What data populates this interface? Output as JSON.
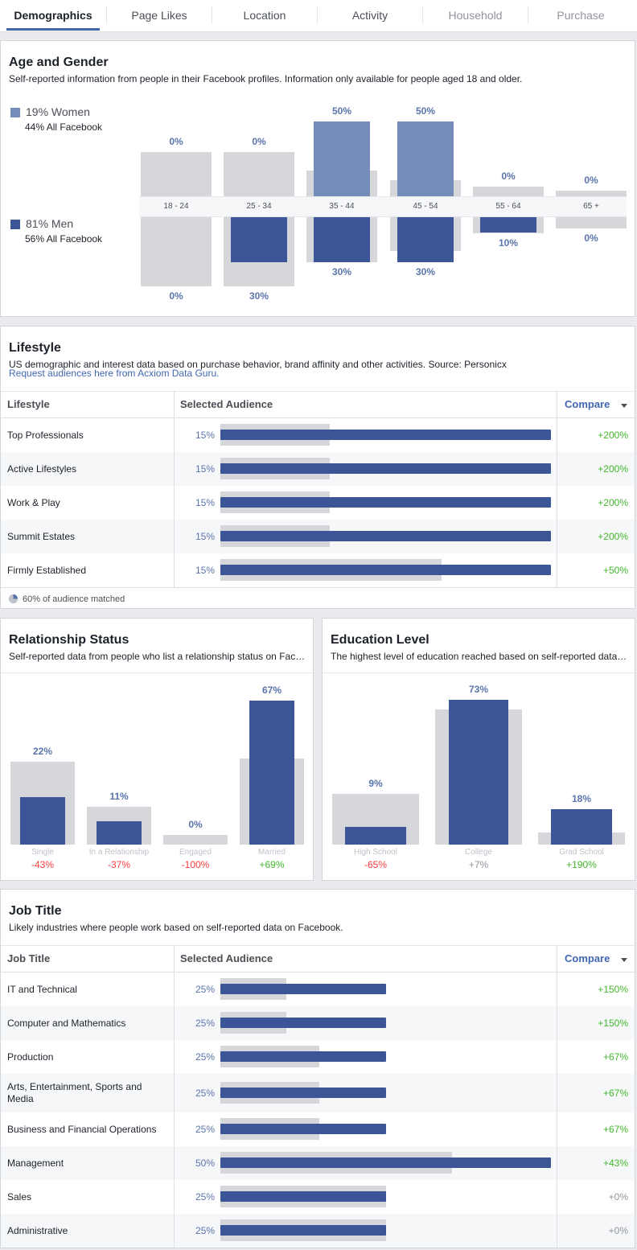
{
  "tabs": [
    "Demographics",
    "Page Likes",
    "Location",
    "Activity",
    "Household",
    "Purchase"
  ],
  "age_gender": {
    "title": "Age and Gender",
    "subtitle": "Self-reported information from people in their Facebook profiles. Information only available for people aged 18 and older.",
    "women_label": "19% Women",
    "women_sub": "44% All Facebook",
    "men_label": "81% Men",
    "men_sub": "56% All Facebook",
    "colors": {
      "women": "#768cb8",
      "men": "#3b5696",
      "baseline": "#d5d7db"
    },
    "chart_data": {
      "type": "bar",
      "categories": [
        "18 - 24",
        "25 - 34",
        "35 - 44",
        "45 - 54",
        "55 - 64",
        "65 +"
      ],
      "series": [
        {
          "name": "Women",
          "values": [
            0,
            0,
            50,
            50,
            0,
            0
          ],
          "labels": [
            "0%",
            "0%",
            "50%",
            "50%",
            "0%",
            "0%"
          ]
        },
        {
          "name": "Men",
          "values": [
            0,
            30,
            30,
            30,
            10,
            0
          ],
          "labels": [
            "0%",
            "30%",
            "30%",
            "30%",
            "10%",
            "0%"
          ]
        }
      ]
    }
  },
  "lifestyle": {
    "title": "Lifestyle",
    "subtitle": "US demographic and interest data based on purchase behavior, brand affinity and other activities. Source: Personicx",
    "link": "Request audiences here from Acxiom Data Guru.",
    "col_label": "Lifestyle",
    "col_selected": "Selected Audience",
    "col_compare": "Compare",
    "rows": [
      {
        "label": "Top Professionals",
        "pct": "15%",
        "compare": "+200%"
      },
      {
        "label": "Active Lifestyles",
        "pct": "15%",
        "compare": "+200%"
      },
      {
        "label": "Work & Play",
        "pct": "15%",
        "compare": "+200%"
      },
      {
        "label": "Summit Estates",
        "pct": "15%",
        "compare": "+200%"
      },
      {
        "label": "Firmly Established",
        "pct": "15%",
        "compare": "+50%"
      }
    ],
    "footer": "60% of audience matched"
  },
  "relationship": {
    "title": "Relationship Status",
    "subtitle": "Self-reported data from people who list a relationship status on Fac…",
    "chart_data": {
      "type": "bar",
      "categories": [
        "Single",
        "In a Relationship",
        "Engaged",
        "Married"
      ],
      "values": [
        22,
        11,
        0,
        67
      ],
      "labels": [
        "22%",
        "11%",
        "0%",
        "67%"
      ],
      "deltas": [
        "-43%",
        "-37%",
        "-100%",
        "+69%"
      ]
    }
  },
  "education": {
    "title": "Education Level",
    "subtitle": "The highest level of education reached based on self-reported data…",
    "chart_data": {
      "type": "bar",
      "categories": [
        "High School",
        "College",
        "Grad School"
      ],
      "values": [
        9,
        73,
        18
      ],
      "labels": [
        "9%",
        "73%",
        "18%"
      ],
      "deltas": [
        "-65%",
        "+7%",
        "+190%"
      ]
    }
  },
  "job": {
    "title": "Job Title",
    "subtitle": "Likely industries where people work based on self-reported data on Facebook.",
    "col_label": "Job Title",
    "col_selected": "Selected Audience",
    "col_compare": "Compare",
    "rows": [
      {
        "label": "IT and Technical",
        "pct": "25%",
        "compare": "+150%"
      },
      {
        "label": "Computer and Mathematics",
        "pct": "25%",
        "compare": "+150%"
      },
      {
        "label": "Production",
        "pct": "25%",
        "compare": "+67%"
      },
      {
        "label": "Arts, Entertainment, Sports and Media",
        "pct": "25%",
        "compare": "+67%"
      },
      {
        "label": "Business and Financial Operations",
        "pct": "25%",
        "compare": "+67%"
      },
      {
        "label": "Management",
        "pct": "50%",
        "compare": "+43%"
      },
      {
        "label": "Sales",
        "pct": "25%",
        "compare": "+0%"
      },
      {
        "label": "Administrative",
        "pct": "25%",
        "compare": "+0%"
      }
    ]
  }
}
